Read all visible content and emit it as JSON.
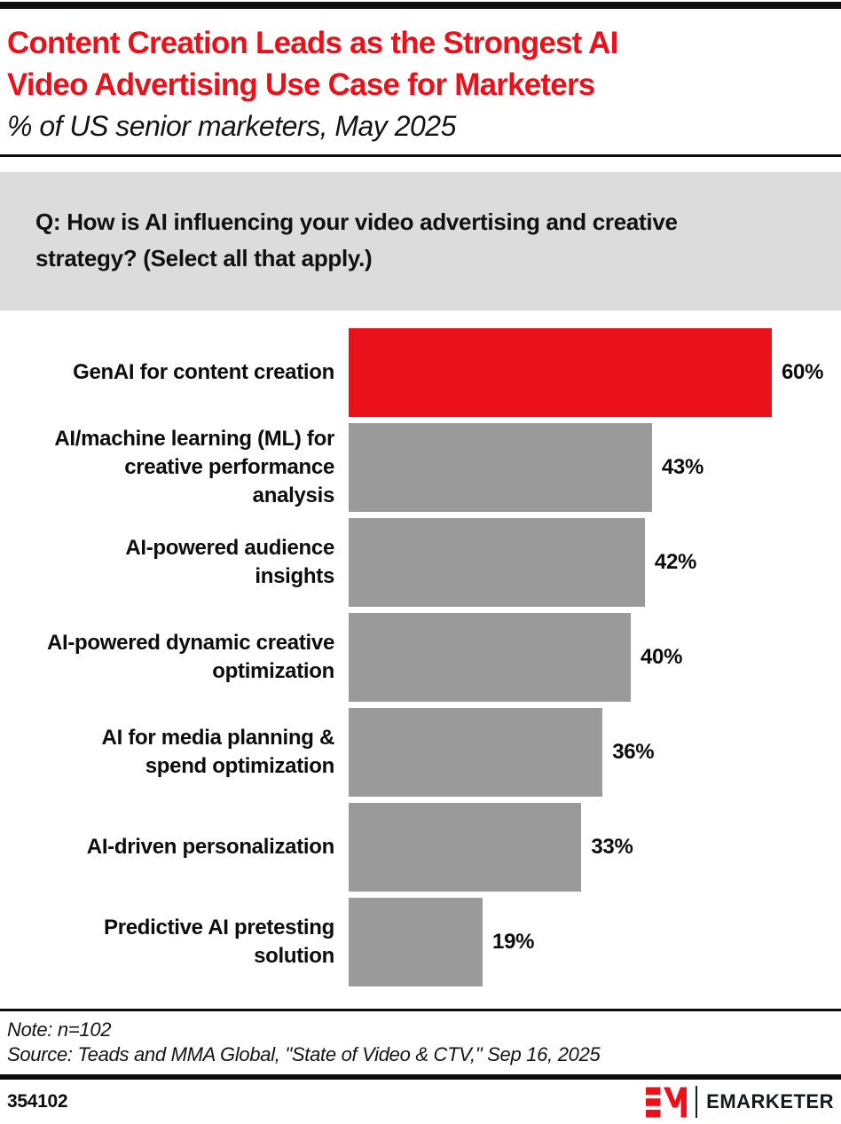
{
  "header": {
    "title": "Content Creation Leads as the Strongest AI\nVideo Advertising Use Case for Marketers",
    "subtitle": "% of US senior marketers, May 2025"
  },
  "question": {
    "text": "Q: How is AI influencing your video advertising and creative\nstrategy? (Select all that apply.)"
  },
  "chart_data": {
    "type": "bar",
    "orientation": "horizontal",
    "title": "Content Creation Leads as the Strongest AI Video Advertising Use Case for Marketers",
    "subtitle": "% of US senior marketers, May 2025",
    "unit": "%",
    "xlim": [
      0,
      70
    ],
    "grid": false,
    "legend": false,
    "categories": [
      "GenAI for content creation",
      "AI/machine learning (ML) for creative performance analysis",
      "AI-powered audience insights",
      "AI-powered dynamic creative optimization",
      "AI for media planning & spend optimization",
      "AI-driven personalization",
      "Predictive AI pretesting solution"
    ],
    "values": [
      60,
      43,
      42,
      40,
      36,
      33,
      19
    ],
    "highlight_color": "#EB111B",
    "default_bar_color": "#9A9A9A",
    "bars": [
      {
        "label": "GenAI for content creation",
        "value": 60,
        "display": "60%",
        "color": "#EB111B"
      },
      {
        "label": "AI/machine learning (ML) for\ncreative performance\nanalysis",
        "value": 43,
        "display": "43%",
        "color": "#9A9A9A"
      },
      {
        "label": "AI-powered audience\ninsights",
        "value": 42,
        "display": "42%",
        "color": "#9A9A9A"
      },
      {
        "label": "AI-powered dynamic creative\noptimization",
        "value": 40,
        "display": "40%",
        "color": "#9A9A9A"
      },
      {
        "label": "AI for media planning &\nspend optimization",
        "value": 36,
        "display": "36%",
        "color": "#9A9A9A"
      },
      {
        "label": "AI-driven personalization",
        "value": 33,
        "display": "33%",
        "color": "#9A9A9A"
      },
      {
        "label": "Predictive AI pretesting\nsolution",
        "value": 19,
        "display": "19%",
        "color": "#9A9A9A"
      }
    ]
  },
  "notes": {
    "note": "Note: n=102",
    "source": "Source: Teads and MMA Global, \"State of Video & CTV,\" Sep 16, 2025"
  },
  "footer": {
    "chart_id": "354102",
    "brand_wordmark": "EMARKETER",
    "brand_red": "#EB111B"
  }
}
